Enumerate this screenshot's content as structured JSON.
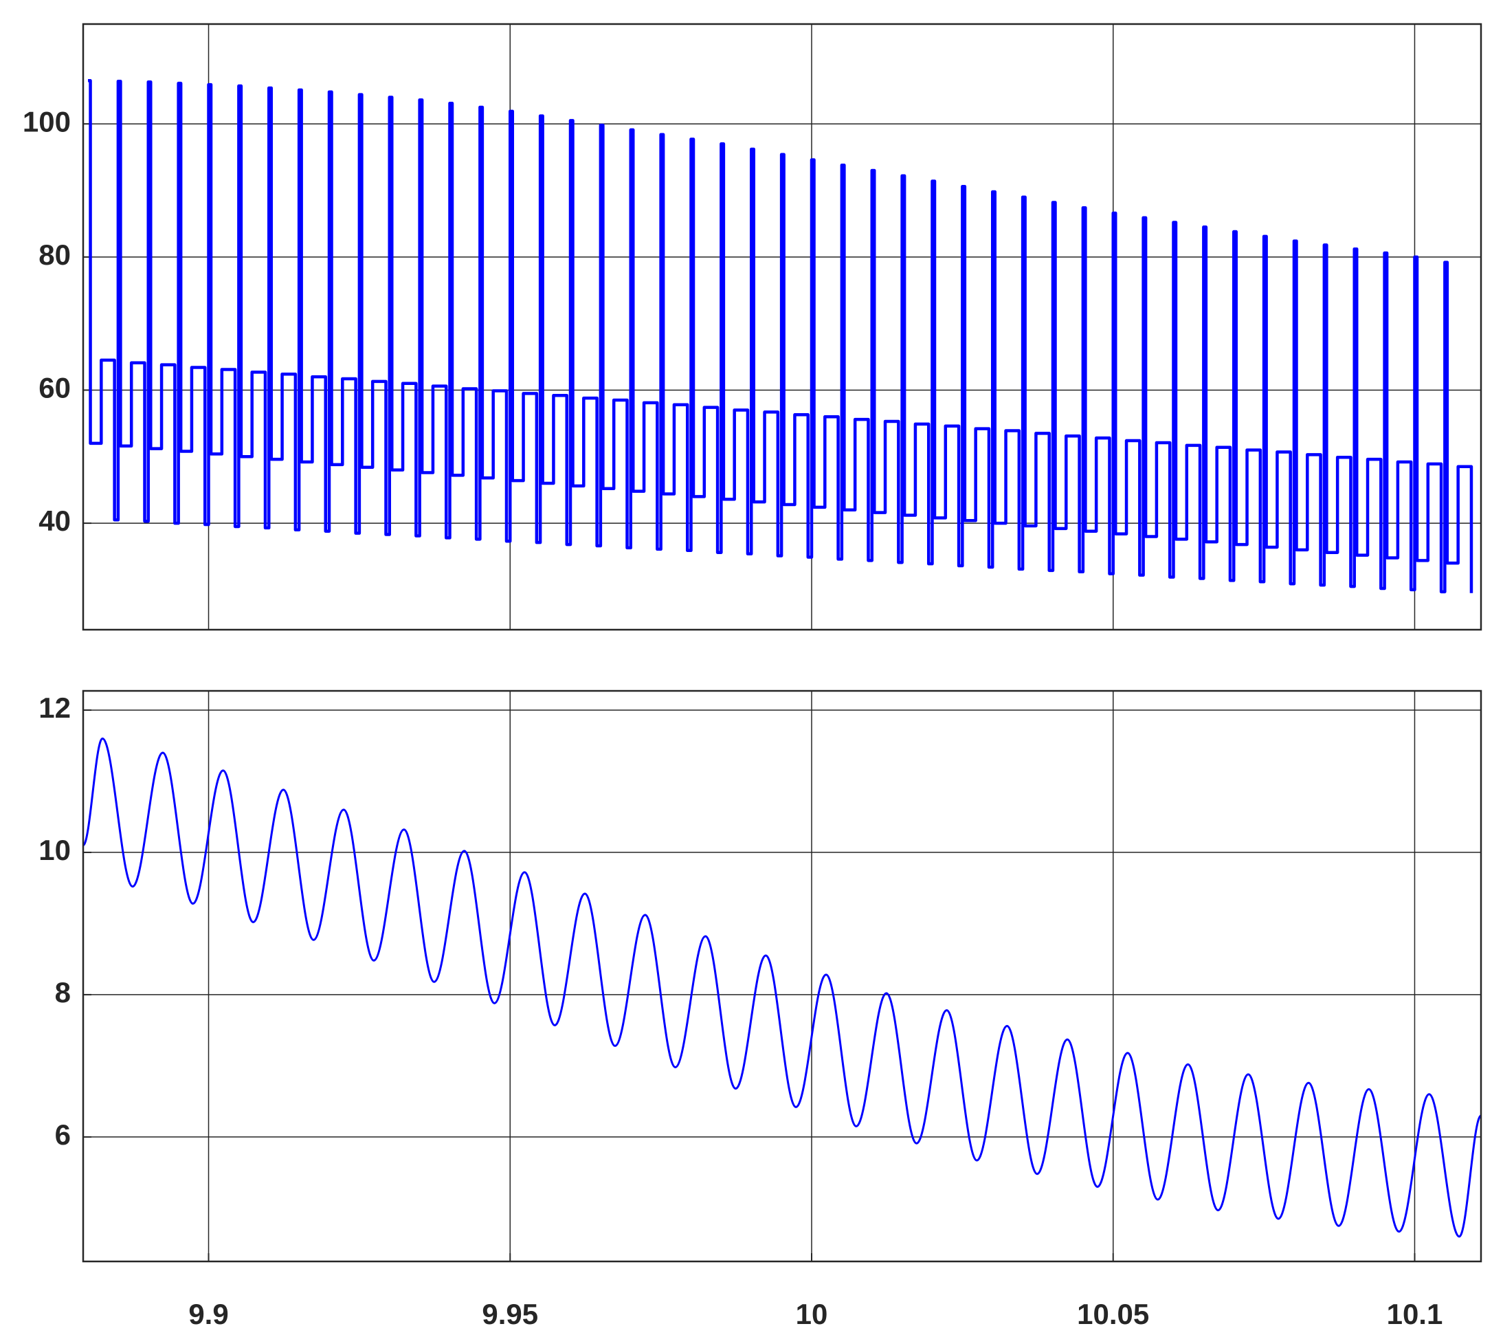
{
  "chart_data": [
    {
      "type": "line",
      "step": true,
      "color": "#0000ff",
      "grid": true,
      "xlim": [
        9.8792,
        10.111
      ],
      "ylim": [
        24,
        115
      ],
      "yticks": [
        40,
        60,
        80,
        100
      ],
      "x": [
        9.88,
        9.8804,
        9.8822,
        9.8844,
        9.885,
        9.8854,
        9.8872,
        9.8894,
        9.89,
        9.8904,
        9.8922,
        9.8944,
        9.895,
        9.8954,
        9.8972,
        9.8994,
        9.9,
        9.9004,
        9.9022,
        9.9044,
        9.905,
        9.9054,
        9.9072,
        9.9094,
        9.91,
        9.9104,
        9.9122,
        9.9144,
        9.915,
        9.9154,
        9.9172,
        9.9194,
        9.92,
        9.9204,
        9.9222,
        9.9244,
        9.925,
        9.9254,
        9.9272,
        9.9294,
        9.93,
        9.9304,
        9.9322,
        9.9344,
        9.935,
        9.9354,
        9.9372,
        9.9394,
        9.94,
        9.9404,
        9.9422,
        9.9444,
        9.945,
        9.9454,
        9.9472,
        9.9494,
        9.95,
        9.9504,
        9.9522,
        9.9544,
        9.955,
        9.9554,
        9.9572,
        9.9594,
        9.96,
        9.9604,
        9.9622,
        9.9644,
        9.965,
        9.9654,
        9.9672,
        9.9694,
        9.97,
        9.9704,
        9.9722,
        9.9744,
        9.975,
        9.9754,
        9.9772,
        9.9794,
        9.98,
        9.9804,
        9.9822,
        9.9844,
        9.985,
        9.9854,
        9.9872,
        9.9894,
        9.99,
        9.9904,
        9.9922,
        9.9944,
        9.995,
        9.9954,
        9.9972,
        9.9994,
        10,
        10.0004,
        10.0022,
        10.0044,
        10.005,
        10.0054,
        10.0072,
        10.0094,
        10.01,
        10.0104,
        10.0122,
        10.0144,
        10.015,
        10.0154,
        10.0172,
        10.0194,
        10.02,
        10.0204,
        10.0222,
        10.0244,
        10.025,
        10.0254,
        10.0272,
        10.0294,
        10.03,
        10.0304,
        10.0322,
        10.0344,
        10.035,
        10.0354,
        10.0372,
        10.0394,
        10.04,
        10.0404,
        10.0422,
        10.0444,
        10.045,
        10.0454,
        10.0472,
        10.0494,
        10.05,
        10.0504,
        10.0522,
        10.0544,
        10.055,
        10.0554,
        10.0572,
        10.0594,
        10.06,
        10.0604,
        10.0622,
        10.0644,
        10.065,
        10.0654,
        10.0672,
        10.0694,
        10.07,
        10.0704,
        10.0722,
        10.0744,
        10.075,
        10.0754,
        10.0772,
        10.0794,
        10.08,
        10.0804,
        10.0822,
        10.0844,
        10.085,
        10.0854,
        10.0872,
        10.0894,
        10.09,
        10.0904,
        10.0922,
        10.0944,
        10.095,
        10.0954,
        10.0972,
        10.0994,
        10.1,
        10.1004,
        10.1022,
        10.1044,
        10.105,
        10.1054,
        10.1072,
        10.1094
      ],
      "values": [
        106.5,
        52,
        64.5,
        40.5,
        106.4,
        51.6,
        64.1,
        40.3,
        106.3,
        51.2,
        63.8,
        40.0,
        106.1,
        50.8,
        63.4,
        39.8,
        105.9,
        50.4,
        63.1,
        39.5,
        105.7,
        50,
        62.7,
        39.3,
        105.4,
        49.6,
        62.4,
        39.0,
        105.1,
        49.2,
        62.0,
        38.8,
        104.8,
        48.8,
        61.7,
        38.5,
        104.4,
        48.4,
        61.3,
        38.3,
        104.0,
        48,
        61.0,
        38.1,
        103.6,
        47.6,
        60.6,
        37.8,
        103.1,
        47.2,
        60.2,
        37.6,
        102.5,
        46.8,
        59.9,
        37.3,
        101.9,
        46.4,
        59.5,
        37.1,
        101.2,
        46,
        59.2,
        36.8,
        100.5,
        45.6,
        58.8,
        36.6,
        99.8,
        45.2,
        58.5,
        36.3,
        99.1,
        44.8,
        58.1,
        36.1,
        98.4,
        44.4,
        57.8,
        35.9,
        97.7,
        44,
        57.4,
        35.6,
        97.0,
        43.6,
        57.0,
        35.4,
        96.2,
        43.2,
        56.7,
        35.1,
        95.4,
        42.8,
        56.3,
        34.9,
        94.6,
        42.4,
        56.0,
        34.6,
        93.8,
        42,
        55.6,
        34.4,
        93.0,
        41.6,
        55.3,
        34.1,
        92.2,
        41.2,
        54.9,
        33.9,
        91.4,
        40.8,
        54.6,
        33.6,
        90.6,
        40.4,
        54.2,
        33.4,
        89.8,
        40,
        53.9,
        33.1,
        89.0,
        39.6,
        53.5,
        32.9,
        88.2,
        39.2,
        53.1,
        32.7,
        87.4,
        38.8,
        52.8,
        32.4,
        86.6,
        38.4,
        52.4,
        32.2,
        85.9,
        38,
        52.1,
        31.9,
        85.2,
        37.6,
        51.7,
        31.7,
        84.5,
        37.2,
        51.4,
        31.4,
        83.8,
        36.8,
        51.0,
        31.2,
        83.1,
        36.4,
        50.7,
        30.9,
        82.4,
        36,
        50.3,
        30.7,
        81.8,
        35.6,
        49.9,
        30.5,
        81.2,
        35.2,
        49.6,
        30.2,
        80.6,
        34.8,
        49.2,
        30.0,
        80.0,
        34.4,
        48.9,
        29.7,
        79.2,
        34,
        48.5,
        29.5
      ]
    },
    {
      "type": "line",
      "step": false,
      "color": "#0000ff",
      "grid": true,
      "xlim": [
        9.8792,
        10.111
      ],
      "ylim": [
        4.25,
        12.27
      ],
      "yticks": [
        6,
        8,
        10,
        12
      ],
      "xticks": [
        9.9,
        9.95,
        10,
        10.05,
        10.1
      ],
      "x": [
        9.8792,
        9.8824,
        9.8874,
        9.8924,
        9.8974,
        9.9024,
        9.9074,
        9.9124,
        9.9174,
        9.9224,
        9.9274,
        9.9324,
        9.9374,
        9.9424,
        9.9474,
        9.9524,
        9.9574,
        9.9624,
        9.9674,
        9.9724,
        9.9774,
        9.9824,
        9.9874,
        9.9924,
        9.9974,
        10.0024,
        10.0074,
        10.0124,
        10.0174,
        10.0224,
        10.0274,
        10.0324,
        10.0374,
        10.0424,
        10.0474,
        10.0524,
        10.0574,
        10.0624,
        10.0674,
        10.0724,
        10.0774,
        10.0824,
        10.0874,
        10.0924,
        10.0974,
        10.1024,
        10.1074,
        10.111
      ],
      "values": [
        10.1,
        11.6,
        9.52,
        11.4,
        9.28,
        11.15,
        9.02,
        10.88,
        8.77,
        10.6,
        8.48,
        10.32,
        8.18,
        10.02,
        7.88,
        9.72,
        7.57,
        9.42,
        7.28,
        9.12,
        6.98,
        8.82,
        6.68,
        8.55,
        6.42,
        8.28,
        6.15,
        8.02,
        5.91,
        7.78,
        5.67,
        7.56,
        5.48,
        7.37,
        5.3,
        7.18,
        5.12,
        7.02,
        4.97,
        6.88,
        4.85,
        6.76,
        4.75,
        6.67,
        4.67,
        6.6,
        4.6,
        6.3
      ]
    }
  ]
}
